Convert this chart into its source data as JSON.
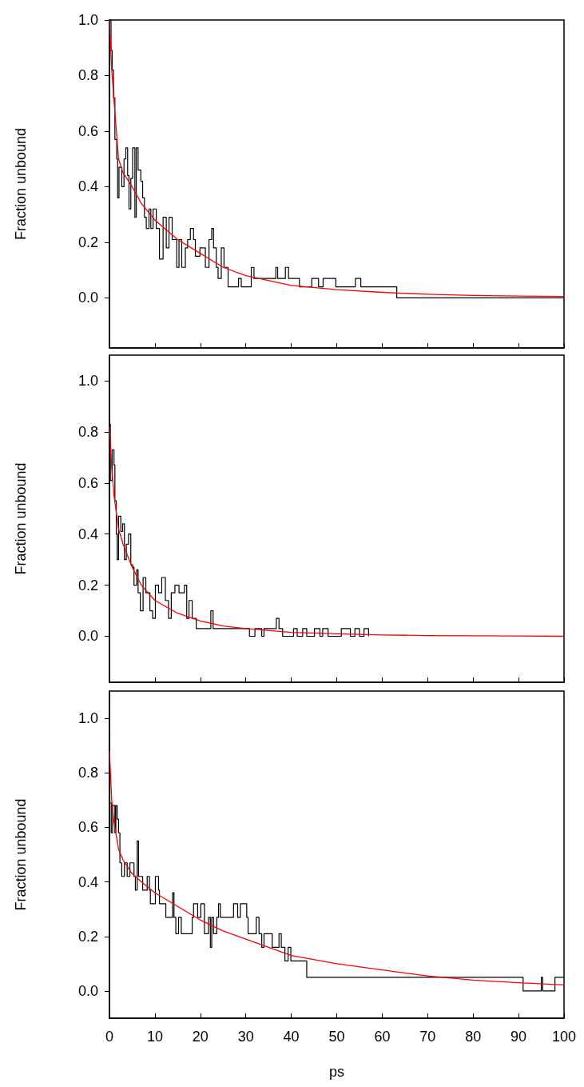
{
  "chart_data": [
    {
      "type": "step",
      "ylabel": "Fraction unbound",
      "xlim": [
        0,
        100
      ],
      "xticks": [
        {
          "value": 0,
          "label": null
        },
        {
          "value": 10,
          "label": null
        },
        {
          "value": 20,
          "label": null
        },
        {
          "value": 30,
          "label": null
        },
        {
          "value": 40,
          "label": null
        },
        {
          "value": 50,
          "label": null
        },
        {
          "value": 60,
          "label": null
        },
        {
          "value": 70,
          "label": null
        },
        {
          "value": 80,
          "label": null
        },
        {
          "value": 90,
          "label": null
        },
        {
          "value": 100,
          "label": null
        }
      ],
      "ylim": [
        -0.18,
        1.0
      ],
      "yticks": [
        {
          "value": 0,
          "label": "0.0"
        },
        {
          "value": 0.2,
          "label": "0.2"
        },
        {
          "value": 0.4,
          "label": "0.4"
        },
        {
          "value": 0.6,
          "label": "0.6"
        },
        {
          "value": 0.8,
          "label": "0.8"
        },
        {
          "value": 1,
          "label": "1.0"
        }
      ],
      "tick_labels": "y",
      "grid": false,
      "series": [
        {
          "color": "#000000",
          "x": [
            0,
            0.35,
            0.6,
            0.9,
            1.2,
            1.6,
            1.8,
            2.1,
            2.7,
            3.2,
            3.6,
            4.0,
            4.3,
            4.7,
            5.1,
            5.6,
            5.9,
            6.3,
            6.9,
            7.3,
            7.7,
            8.1,
            8.7,
            9.1,
            9.6,
            10.3,
            11.0,
            11.8,
            12.5,
            13.1,
            13.8,
            14.8,
            15.3,
            15.9,
            16.7,
            17.2,
            17.8,
            18.5,
            18.9,
            19.9,
            21.1,
            21.9,
            22.5,
            22.9,
            23.5,
            23.9,
            24.6,
            25.2,
            26.1,
            28.4,
            29.0,
            31.2,
            31.8,
            36.6,
            37.0,
            38.7,
            39.4,
            41.8,
            44.5,
            46.0,
            47.0,
            49.8,
            54.1,
            55.3,
            63.2,
            100
          ],
          "values": [
            1.0,
            0.89,
            0.82,
            0.72,
            0.57,
            0.5,
            0.36,
            0.47,
            0.4,
            0.5,
            0.54,
            0.44,
            0.32,
            0.43,
            0.54,
            0.29,
            0.54,
            0.46,
            0.42,
            0.36,
            0.29,
            0.25,
            0.32,
            0.25,
            0.32,
            0.25,
            0.14,
            0.29,
            0.18,
            0.29,
            0.21,
            0.11,
            0.21,
            0.11,
            0.18,
            0.21,
            0.25,
            0.21,
            0.15,
            0.18,
            0.11,
            0.21,
            0.25,
            0.18,
            0.11,
            0.07,
            0.18,
            0.11,
            0.04,
            0.07,
            0.04,
            0.11,
            0.07,
            0.11,
            0.07,
            0.11,
            0.07,
            0.04,
            0.07,
            0.04,
            0.07,
            0.04,
            0.07,
            0.04,
            0.0,
            0.0
          ]
        },
        {
          "type": "line",
          "color": "#ff0000",
          "x": [
            0,
            0.5,
            1,
            2,
            3,
            5,
            7,
            10,
            15,
            20,
            25,
            30,
            40,
            50,
            60,
            70,
            80,
            90,
            100
          ],
          "values": [
            1.0,
            0.82,
            0.71,
            0.5,
            0.45,
            0.4,
            0.34,
            0.28,
            0.21,
            0.16,
            0.11,
            0.08,
            0.045,
            0.03,
            0.02,
            0.013,
            0.009,
            0.007,
            0.005
          ]
        }
      ]
    },
    {
      "type": "step",
      "ylabel": "Fraction unbound",
      "xlim": [
        0,
        100
      ],
      "xticks": [
        {
          "value": 0,
          "label": null
        },
        {
          "value": 10,
          "label": null
        },
        {
          "value": 20,
          "label": null
        },
        {
          "value": 30,
          "label": null
        },
        {
          "value": 40,
          "label": null
        },
        {
          "value": 50,
          "label": null
        },
        {
          "value": 60,
          "label": null
        },
        {
          "value": 70,
          "label": null
        },
        {
          "value": 80,
          "label": null
        },
        {
          "value": 90,
          "label": null
        },
        {
          "value": 100,
          "label": null
        }
      ],
      "ylim": [
        -0.18,
        1.1
      ],
      "yticks": [
        {
          "value": 0,
          "label": "0.0"
        },
        {
          "value": 0.2,
          "label": "0.2"
        },
        {
          "value": 0.4,
          "label": "0.4"
        },
        {
          "value": 0.6,
          "label": "0.6"
        },
        {
          "value": 0.8,
          "label": "0.8"
        },
        {
          "value": 1,
          "label": "1.0"
        }
      ],
      "tick_labels": "y",
      "grid": false,
      "series": [
        {
          "color": "#000000",
          "x": [
            0,
            0.2,
            0.6,
            1.0,
            1.2,
            1.5,
            1.7,
            2.0,
            2.5,
            2.9,
            3.3,
            3.7,
            4.2,
            4.7,
            5.1,
            5.4,
            6.0,
            6.3,
            6.8,
            7.4,
            8.0,
            8.9,
            9.5,
            10.1,
            10.8,
            11.5,
            12.3,
            13.0,
            13.6,
            14.4,
            15.3,
            16.5,
            17.0,
            17.5,
            18.2,
            19.1,
            22.3,
            22.8,
            30.8,
            32.0,
            33.5,
            34.0,
            36.7,
            37.3,
            38.1,
            40.5,
            41.3,
            42.5,
            43.4,
            45.1,
            46.3,
            46.9,
            48.1,
            51,
            53,
            54,
            55,
            56,
            57
          ],
          "values": [
            0.83,
            0.61,
            0.73,
            0.67,
            0.53,
            0.4,
            0.3,
            0.47,
            0.41,
            0.44,
            0.3,
            0.36,
            0.4,
            0.28,
            0.27,
            0.2,
            0.26,
            0.17,
            0.1,
            0.23,
            0.17,
            0.1,
            0.07,
            0.2,
            0.17,
            0.23,
            0.14,
            0.07,
            0.17,
            0.2,
            0.17,
            0.2,
            0.07,
            0.14,
            0.07,
            0.03,
            0.1,
            0.03,
            0.0,
            0.03,
            0.0,
            0.03,
            0.07,
            0.03,
            0.0,
            0.03,
            0.0,
            0.03,
            0.0,
            0.03,
            0.0,
            0.03,
            0.0,
            0.03,
            0.0,
            0.03,
            0.0,
            0.03,
            0.0
          ]
        },
        {
          "type": "line",
          "color": "#ff0000",
          "x": [
            0,
            0.5,
            1,
            2,
            3,
            5,
            7,
            10,
            15,
            20,
            25,
            30,
            40,
            50,
            60,
            70,
            80,
            90,
            100
          ],
          "values": [
            0.82,
            0.66,
            0.55,
            0.42,
            0.36,
            0.27,
            0.2,
            0.14,
            0.09,
            0.06,
            0.04,
            0.03,
            0.015,
            0.01,
            0.005,
            0.003,
            0.002,
            0.001,
            0.0
          ]
        }
      ]
    },
    {
      "type": "step",
      "ylabel": "Fraction unbound",
      "xlabel": "ps",
      "xlim": [
        0,
        100
      ],
      "xticks": [
        0,
        10,
        20,
        30,
        40,
        50,
        60,
        70,
        80,
        90,
        100
      ],
      "ylim": [
        -0.1,
        1.1
      ],
      "yticks": [
        {
          "value": 0,
          "label": "0.0"
        },
        {
          "value": 0.2,
          "label": "0.2"
        },
        {
          "value": 0.4,
          "label": "0.4"
        },
        {
          "value": 0.6,
          "label": "0.6"
        },
        {
          "value": 0.8,
          "label": "0.8"
        },
        {
          "value": 1,
          "label": "1.0"
        }
      ],
      "grid": false,
      "series": [
        {
          "color": "#000000",
          "x": [
            0,
            0.1,
            0.4,
            0.7,
            1.2,
            1.4,
            1.7,
            2.0,
            2.3,
            2.7,
            3.3,
            3.9,
            4.5,
            5.4,
            5.7,
            6.1,
            6.4,
            7.3,
            8.3,
            8.8,
            9.0,
            10.1,
            10.8,
            11.0,
            12.4,
            13.9,
            14.2,
            14.6,
            15.2,
            15.8,
            18.2,
            18.5,
            19.4,
            20.1,
            20.9,
            21.8,
            22.2,
            22.5,
            22.9,
            23.6,
            24.0,
            24.4,
            27.3,
            28.2,
            28.8,
            30.2,
            30.5,
            32.3,
            32.9,
            33.5,
            34.0,
            35.8,
            37.3,
            37.8,
            38.6,
            39.3,
            39.9,
            43.4,
            91,
            95,
            95.3,
            98,
            100
          ],
          "values": [
            0.95,
            0.69,
            0.58,
            0.68,
            0.58,
            0.68,
            0.63,
            0.58,
            0.47,
            0.42,
            0.47,
            0.42,
            0.47,
            0.42,
            0.37,
            0.55,
            0.42,
            0.37,
            0.42,
            0.37,
            0.32,
            0.42,
            0.37,
            0.32,
            0.27,
            0.36,
            0.27,
            0.21,
            0.27,
            0.21,
            0.27,
            0.32,
            0.27,
            0.32,
            0.21,
            0.27,
            0.16,
            0.27,
            0.21,
            0.27,
            0.32,
            0.27,
            0.32,
            0.27,
            0.32,
            0.27,
            0.21,
            0.27,
            0.21,
            0.16,
            0.21,
            0.16,
            0.21,
            0.16,
            0.11,
            0.16,
            0.11,
            0.05,
            0.0,
            0.05,
            0.0,
            0.05,
            0.05
          ]
        },
        {
          "type": "line",
          "color": "#ff0000",
          "x": [
            0,
            0.5,
            1,
            2,
            3,
            5,
            7,
            10,
            15,
            20,
            25,
            30,
            40,
            50,
            60,
            70,
            80,
            90,
            100
          ],
          "values": [
            0.88,
            0.7,
            0.62,
            0.52,
            0.48,
            0.43,
            0.4,
            0.36,
            0.31,
            0.26,
            0.22,
            0.19,
            0.13,
            0.1,
            0.077,
            0.055,
            0.04,
            0.03,
            0.022
          ]
        }
      ]
    }
  ]
}
